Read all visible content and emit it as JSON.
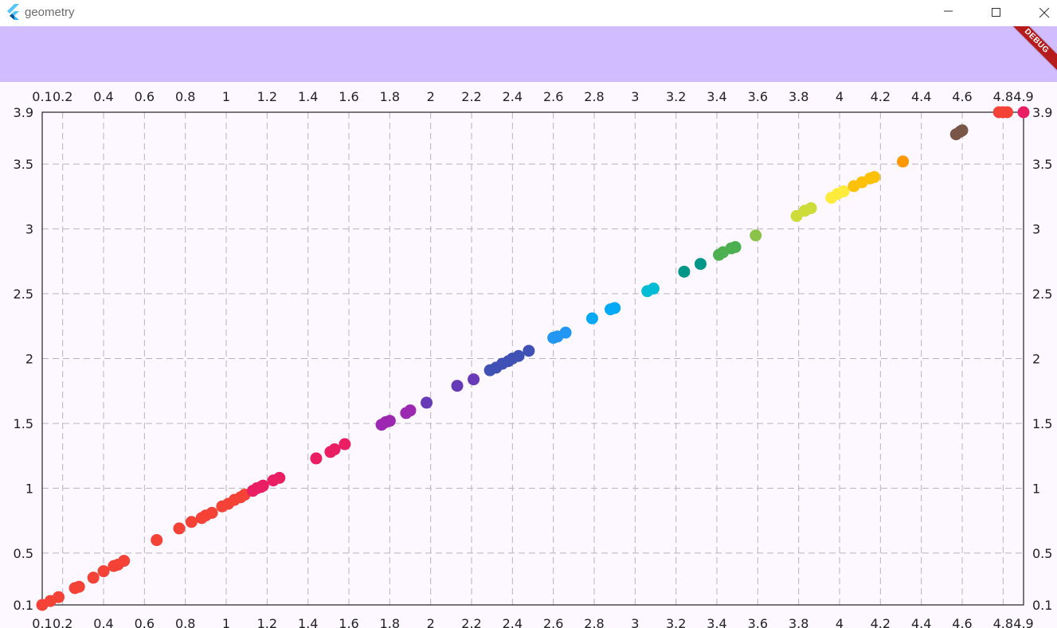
{
  "window": {
    "title": "geometry",
    "icons": {
      "app": "flutter-icon",
      "minimize": "minimize-icon",
      "maximize": "maximize-icon",
      "close": "close-icon"
    }
  },
  "app": {
    "banner": "DEBUG",
    "appbar_color": "#D0BCFF"
  },
  "chart_data": {
    "type": "scatter",
    "title": "",
    "xlabel": "",
    "ylabel": "",
    "xlim": [
      0.1,
      4.9
    ],
    "ylim": [
      0.1,
      3.9
    ],
    "grid": true,
    "grid_style": "dashed",
    "axes": "x ticks on top and bottom, y ticks on left and right",
    "x_ticks": [
      "0.1",
      "0.2",
      "0.4",
      "0.6",
      "0.8",
      "1",
      "1.2",
      "1.4",
      "1.6",
      "1.8",
      "2",
      "2.2",
      "2.4",
      "2.6",
      "2.8",
      "3",
      "3.2",
      "3.4",
      "3.6",
      "3.8",
      "4",
      "4.2",
      "4.4",
      "4.6",
      "4.8",
      "4.9"
    ],
    "y_ticks": [
      "0.1",
      "0.5",
      "1",
      "1.5",
      "2",
      "2.5",
      "3",
      "3.5",
      "3.9"
    ],
    "points": [
      {
        "x": 0.1,
        "y": 0.1,
        "color": "#F44336"
      },
      {
        "x": 0.14,
        "y": 0.13,
        "color": "#F44336"
      },
      {
        "x": 0.18,
        "y": 0.16,
        "color": "#F44336"
      },
      {
        "x": 0.26,
        "y": 0.23,
        "color": "#F44336"
      },
      {
        "x": 0.28,
        "y": 0.24,
        "color": "#F44336"
      },
      {
        "x": 0.35,
        "y": 0.31,
        "color": "#F44336"
      },
      {
        "x": 0.4,
        "y": 0.36,
        "color": "#F44336"
      },
      {
        "x": 0.45,
        "y": 0.4,
        "color": "#F44336"
      },
      {
        "x": 0.47,
        "y": 0.41,
        "color": "#F44336"
      },
      {
        "x": 0.5,
        "y": 0.44,
        "color": "#F44336"
      },
      {
        "x": 0.66,
        "y": 0.6,
        "color": "#F44336"
      },
      {
        "x": 0.77,
        "y": 0.69,
        "color": "#F44336"
      },
      {
        "x": 0.83,
        "y": 0.74,
        "color": "#F44336"
      },
      {
        "x": 0.88,
        "y": 0.77,
        "color": "#F44336"
      },
      {
        "x": 0.9,
        "y": 0.79,
        "color": "#F44336"
      },
      {
        "x": 0.93,
        "y": 0.81,
        "color": "#F44336"
      },
      {
        "x": 0.98,
        "y": 0.86,
        "color": "#F44336"
      },
      {
        "x": 1.01,
        "y": 0.88,
        "color": "#F44336"
      },
      {
        "x": 1.04,
        "y": 0.91,
        "color": "#F44336"
      },
      {
        "x": 1.07,
        "y": 0.93,
        "color": "#F44336"
      },
      {
        "x": 1.09,
        "y": 0.95,
        "color": "#F44336"
      },
      {
        "x": 1.13,
        "y": 0.98,
        "color": "#E91E63"
      },
      {
        "x": 1.15,
        "y": 1.0,
        "color": "#E91E63"
      },
      {
        "x": 1.17,
        "y": 1.01,
        "color": "#E91E63"
      },
      {
        "x": 1.18,
        "y": 1.02,
        "color": "#E91E63"
      },
      {
        "x": 1.23,
        "y": 1.06,
        "color": "#E91E63"
      },
      {
        "x": 1.26,
        "y": 1.08,
        "color": "#E91E63"
      },
      {
        "x": 1.44,
        "y": 1.23,
        "color": "#E91E63"
      },
      {
        "x": 1.51,
        "y": 1.28,
        "color": "#E91E63"
      },
      {
        "x": 1.53,
        "y": 1.3,
        "color": "#E91E63"
      },
      {
        "x": 1.58,
        "y": 1.34,
        "color": "#E91E63"
      },
      {
        "x": 1.76,
        "y": 1.49,
        "color": "#9C27B0"
      },
      {
        "x": 1.78,
        "y": 1.51,
        "color": "#9C27B0"
      },
      {
        "x": 1.8,
        "y": 1.52,
        "color": "#9C27B0"
      },
      {
        "x": 1.88,
        "y": 1.58,
        "color": "#9C27B0"
      },
      {
        "x": 1.9,
        "y": 1.6,
        "color": "#9C27B0"
      },
      {
        "x": 1.98,
        "y": 1.66,
        "color": "#673AB7"
      },
      {
        "x": 2.13,
        "y": 1.79,
        "color": "#673AB7"
      },
      {
        "x": 2.21,
        "y": 1.84,
        "color": "#673AB7"
      },
      {
        "x": 2.29,
        "y": 1.91,
        "color": "#3F51B5"
      },
      {
        "x": 2.32,
        "y": 1.93,
        "color": "#3F51B5"
      },
      {
        "x": 2.35,
        "y": 1.96,
        "color": "#3F51B5"
      },
      {
        "x": 2.38,
        "y": 1.98,
        "color": "#3F51B5"
      },
      {
        "x": 2.4,
        "y": 2.0,
        "color": "#3F51B5"
      },
      {
        "x": 2.43,
        "y": 2.02,
        "color": "#3F51B5"
      },
      {
        "x": 2.48,
        "y": 2.06,
        "color": "#3F51B5"
      },
      {
        "x": 2.6,
        "y": 2.16,
        "color": "#2196F3"
      },
      {
        "x": 2.62,
        "y": 2.17,
        "color": "#2196F3"
      },
      {
        "x": 2.66,
        "y": 2.2,
        "color": "#2196F3"
      },
      {
        "x": 2.79,
        "y": 2.31,
        "color": "#03A9F4"
      },
      {
        "x": 2.88,
        "y": 2.38,
        "color": "#03A9F4"
      },
      {
        "x": 2.9,
        "y": 2.39,
        "color": "#03A9F4"
      },
      {
        "x": 3.06,
        "y": 2.52,
        "color": "#00BCD4"
      },
      {
        "x": 3.09,
        "y": 2.54,
        "color": "#00BCD4"
      },
      {
        "x": 3.24,
        "y": 2.67,
        "color": "#009688"
      },
      {
        "x": 3.32,
        "y": 2.73,
        "color": "#009688"
      },
      {
        "x": 3.41,
        "y": 2.8,
        "color": "#4CAF50"
      },
      {
        "x": 3.43,
        "y": 2.82,
        "color": "#4CAF50"
      },
      {
        "x": 3.47,
        "y": 2.85,
        "color": "#4CAF50"
      },
      {
        "x": 3.49,
        "y": 2.86,
        "color": "#4CAF50"
      },
      {
        "x": 3.59,
        "y": 2.95,
        "color": "#8BC34A"
      },
      {
        "x": 3.79,
        "y": 3.1,
        "color": "#CDDC39"
      },
      {
        "x": 3.83,
        "y": 3.14,
        "color": "#CDDC39"
      },
      {
        "x": 3.86,
        "y": 3.16,
        "color": "#CDDC39"
      },
      {
        "x": 3.96,
        "y": 3.24,
        "color": "#FFEB3B"
      },
      {
        "x": 3.99,
        "y": 3.27,
        "color": "#FFEB3B"
      },
      {
        "x": 4.02,
        "y": 3.29,
        "color": "#FFEB3B"
      },
      {
        "x": 4.07,
        "y": 3.33,
        "color": "#FFC107"
      },
      {
        "x": 4.11,
        "y": 3.36,
        "color": "#FFC107"
      },
      {
        "x": 4.15,
        "y": 3.39,
        "color": "#FFC107"
      },
      {
        "x": 4.17,
        "y": 3.4,
        "color": "#FFC107"
      },
      {
        "x": 4.31,
        "y": 3.52,
        "color": "#FF9800"
      },
      {
        "x": 4.57,
        "y": 3.73,
        "color": "#795548"
      },
      {
        "x": 4.59,
        "y": 3.75,
        "color": "#795548"
      },
      {
        "x": 4.6,
        "y": 3.76,
        "color": "#795548"
      },
      {
        "x": 4.78,
        "y": 3.9,
        "color": "#F44336"
      },
      {
        "x": 4.8,
        "y": 3.91,
        "color": "#F44336"
      },
      {
        "x": 4.82,
        "y": 3.93,
        "color": "#F44336"
      },
      {
        "x": 4.9,
        "y": 3.99,
        "color": "#E91E63"
      }
    ]
  }
}
